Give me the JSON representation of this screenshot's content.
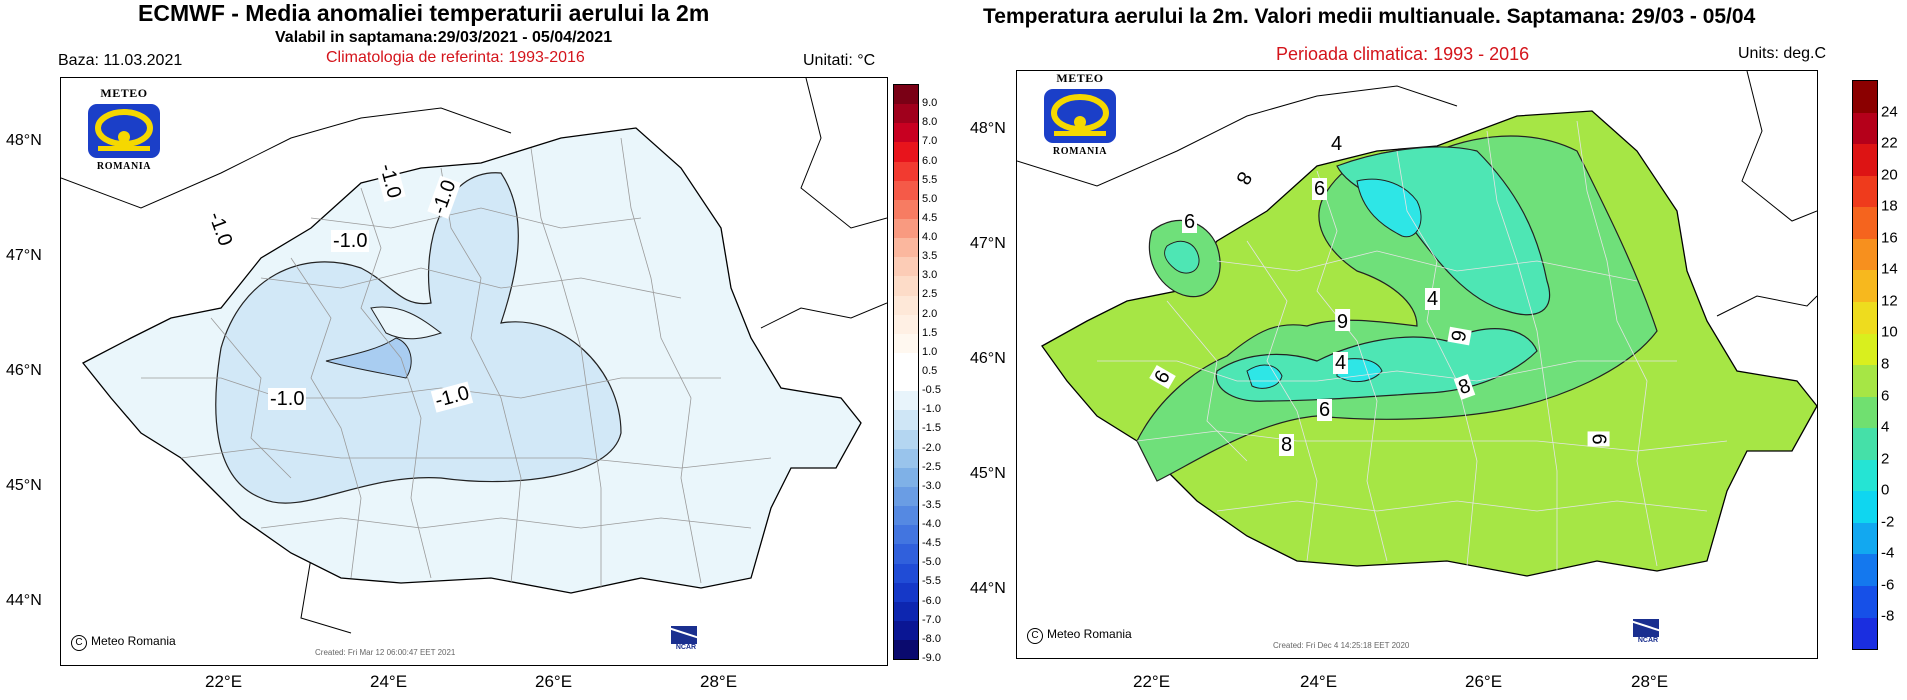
{
  "left_map": {
    "title": "ECMWF  - Media anomaliei temperaturii aerului la 2m",
    "subtitle": "Valabil in saptamana:29/03/2021 - 05/04/2021",
    "baza": "Baza: 11.03.2021",
    "climatology": "Climatologia de referinta: 1993-2016",
    "units": "Unitati: °C",
    "latitude_labels": [
      "48°N",
      "47°N",
      "46°N",
      "45°N",
      "44°N"
    ],
    "longitude_labels": [
      "22°E",
      "24°E",
      "26°E",
      "28°E"
    ],
    "colorbar_labels": [
      "9.0",
      "8.0",
      "7.0",
      "6.0",
      "5.5",
      "5.0",
      "4.5",
      "4.0",
      "3.5",
      "3.0",
      "2.5",
      "2.0",
      "1.5",
      "1.0",
      "0.5",
      "-0.5",
      "-1.0",
      "-1.5",
      "-2.0",
      "-2.5",
      "-3.0",
      "-3.5",
      "-4.0",
      "-4.5",
      "-5.0",
      "-5.5",
      "-6.0",
      "-7.0",
      "-8.0",
      "-9.0"
    ],
    "contour_labels": [
      "-1.0",
      "-1.0",
      "-1.0",
      "-1.0",
      "-1.0",
      "-1.0"
    ],
    "credit": "Meteo Romania",
    "created": "Created: Fri Mar 12 06:00:47 EET 2021",
    "logo_top": "METEO",
    "logo_bottom": "ROMANIA",
    "ncar": "NCAR"
  },
  "right_map": {
    "title": "Temperatura aerului la 2m. Valori medii multianuale. Saptamana: 29/03 - 05/04",
    "climatology": "Perioada climatica: 1993 - 2016",
    "units": "Units: deg.C",
    "latitude_labels": [
      "48°N",
      "47°N",
      "46°N",
      "45°N",
      "44°N"
    ],
    "longitude_labels": [
      "22°E",
      "24°E",
      "26°E",
      "28°E"
    ],
    "colorbar_labels": [
      "24",
      "22",
      "20",
      "18",
      "16",
      "14",
      "12",
      "10",
      "8",
      "6",
      "4",
      "2",
      "0",
      "-2",
      "-4",
      "-6",
      "-8"
    ],
    "contour_labels": [
      "4",
      "8",
      "6",
      "6",
      "4",
      "6",
      "4",
      "9",
      "6",
      "6",
      "8",
      "8",
      "6"
    ],
    "credit": "Meteo Romania",
    "created": "Created: Fri Dec  4 14:25:18 EET 2020",
    "logo_top": "METEO",
    "logo_bottom": "ROMANIA",
    "ncar": "NCAR"
  },
  "colors": {
    "left_fill_main": "#eaf6fb",
    "left_fill_m1": "#d2e8f7",
    "left_fill_m15": "#a9cdf1",
    "right_fill_8": "#a6e645",
    "right_fill_6": "#6fe07a",
    "right_fill_4": "#4ee6b4",
    "right_fill_2": "#2ee6e6"
  },
  "left_colorbar_colors": [
    "#7a0015",
    "#a0001c",
    "#c80021",
    "#e8141c",
    "#f23a30",
    "#f55a48",
    "#f77c62",
    "#f99a80",
    "#fbb79e",
    "#fcccb6",
    "#fddcc8",
    "#fee8d8",
    "#fff0e4",
    "#fff8f0",
    "#ffffff",
    "#ffffff",
    "#e8f4fb",
    "#cfe6f6",
    "#b4d6f1",
    "#99c4ec",
    "#7fb1e7",
    "#6a9de4",
    "#5589e2",
    "#4275e0",
    "#3060dc",
    "#204cd6",
    "#1538c8",
    "#0d26b0",
    "#0a1694",
    "#0a0a6e"
  ],
  "right_colorbar_colors": [
    "#8b0000",
    "#b5001a",
    "#dd1414",
    "#ef3b1c",
    "#f5641e",
    "#f7901e",
    "#f7b81e",
    "#eedc1e",
    "#d9ef1e",
    "#a6e645",
    "#70e070",
    "#45e0a8",
    "#25e4d4",
    "#0fd6f0",
    "#12a8f0",
    "#1478ee",
    "#1650e8",
    "#1a2ee0"
  ]
}
